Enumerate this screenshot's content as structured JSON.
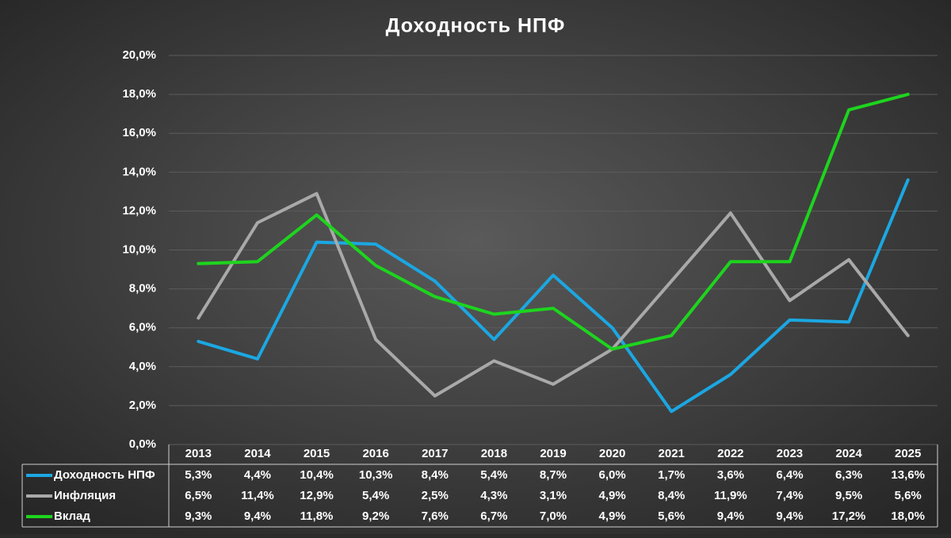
{
  "chart_data": {
    "type": "line",
    "title": "Доходность НПФ",
    "categories": [
      "2013",
      "2014",
      "2015",
      "2016",
      "2017",
      "2018",
      "2019",
      "2020",
      "2021",
      "2022",
      "2023",
      "2024",
      "2025"
    ],
    "series": [
      {
        "name": "Доходность НПФ",
        "color": "#1ba7e2",
        "values": [
          5.3,
          4.4,
          10.4,
          10.3,
          8.4,
          5.4,
          8.7,
          6.0,
          1.7,
          3.6,
          6.4,
          6.3,
          13.6
        ],
        "value_labels": [
          "5,3%",
          "4,4%",
          "10,4%",
          "10,3%",
          "8,4%",
          "5,4%",
          "8,7%",
          "6,0%",
          "1,7%",
          "3,6%",
          "6,4%",
          "6,3%",
          "13,6%"
        ]
      },
      {
        "name": "Инфляция",
        "color": "#a9a9a9",
        "values": [
          6.5,
          11.4,
          12.9,
          5.4,
          2.5,
          4.3,
          3.1,
          4.9,
          8.4,
          11.9,
          7.4,
          9.5,
          5.6
        ],
        "value_labels": [
          "6,5%",
          "11,4%",
          "12,9%",
          "5,4%",
          "2,5%",
          "4,3%",
          "3,1%",
          "4,9%",
          "8,4%",
          "11,9%",
          "7,4%",
          "9,5%",
          "5,6%"
        ]
      },
      {
        "name": "Вклад",
        "color": "#1ed41e",
        "values": [
          9.3,
          9.4,
          11.8,
          9.2,
          7.6,
          6.7,
          7.0,
          4.9,
          5.6,
          9.4,
          9.4,
          17.2,
          18.0
        ],
        "value_labels": [
          "9,3%",
          "9,4%",
          "11,8%",
          "9,2%",
          "7,6%",
          "6,7%",
          "7,0%",
          "4,9%",
          "5,6%",
          "9,4%",
          "9,4%",
          "17,2%",
          "18,0%"
        ]
      }
    ],
    "ylim": [
      0,
      20
    ],
    "yticks": [
      {
        "value": 0,
        "label": "0,0%"
      },
      {
        "value": 2,
        "label": "2,0%"
      },
      {
        "value": 4,
        "label": "4,0%"
      },
      {
        "value": 6,
        "label": "6,0%"
      },
      {
        "value": 8,
        "label": "8,0%"
      },
      {
        "value": 10,
        "label": "10,0%"
      },
      {
        "value": 12,
        "label": "12,0%"
      },
      {
        "value": 14,
        "label": "14,0%"
      },
      {
        "value": 16,
        "label": "16,0%"
      },
      {
        "value": 18,
        "label": "18,0%"
      },
      {
        "value": 20,
        "label": "20,0%"
      }
    ],
    "grid": true
  }
}
